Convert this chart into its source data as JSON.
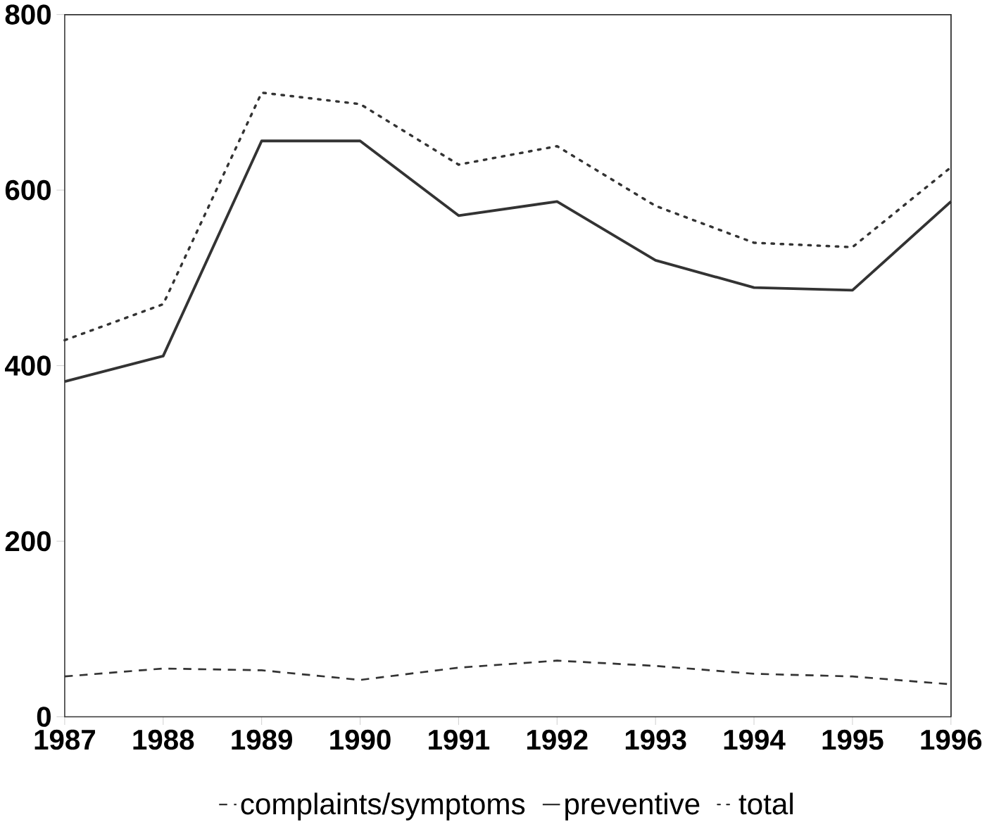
{
  "chart_data": {
    "type": "line",
    "x": [
      1987,
      1988,
      1989,
      1990,
      1991,
      1992,
      1993,
      1994,
      1995,
      1996
    ],
    "xlim": [
      1987,
      1996
    ],
    "xticks": [
      1987,
      1988,
      1989,
      1990,
      1991,
      1992,
      1993,
      1994,
      1995,
      1996
    ],
    "ylim": [
      0,
      800
    ],
    "yticks": [
      0,
      200,
      400,
      600,
      800
    ],
    "series": [
      {
        "name": "complaints/symptoms",
        "color": "#333333",
        "line_style": "dashed",
        "values": [
          46,
          55,
          53,
          42,
          56,
          64,
          58,
          49,
          46,
          37
        ]
      },
      {
        "name": "preventive",
        "color": "#333333",
        "line_style": "solid",
        "values": [
          382,
          411,
          656,
          656,
          571,
          587,
          520,
          489,
          486,
          587
        ]
      },
      {
        "name": "total",
        "color": "#333333",
        "line_style": "dotted",
        "values": [
          429,
          470,
          711,
          698,
          629,
          650,
          582,
          540,
          535,
          626
        ]
      }
    ],
    "legend": "bottom",
    "grid": false,
    "marker": "none"
  }
}
